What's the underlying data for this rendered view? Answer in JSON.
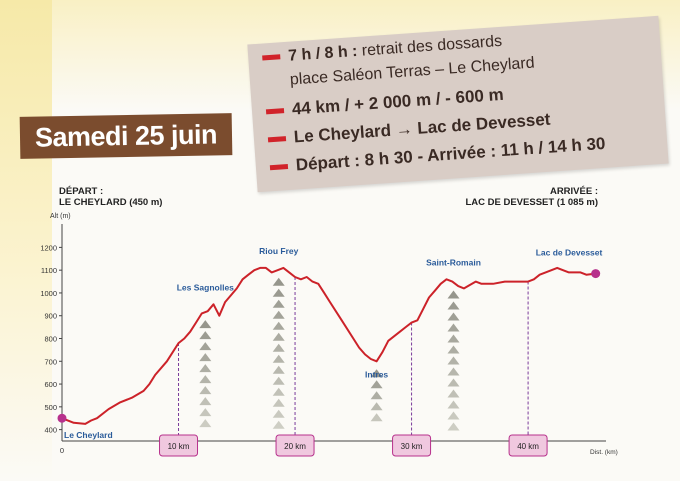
{
  "header": {
    "day_title": "Samedi 25 juin",
    "info": {
      "line1_bold": "7 h / 8 h :",
      "line1_text": " retrait des dossards",
      "line1_cont": "place Saléon Terras – Le Cheylard",
      "line2": "44 km / + 2 000 m / - 600 m",
      "line3_from": "Le Cheylard",
      "line3_arrow": "→",
      "line3_to": "Lac de Devesset",
      "line4": "Départ : 8 h 30 - Arrivée : 11 h / 14 h 30"
    }
  },
  "start": {
    "line1": "DÉPART :",
    "line2": "LE CHEYLARD (450 m)"
  },
  "finish": {
    "line1": "ARRIVÉE :",
    "line2": "LAC DE DEVESSET (1 085 m)"
  },
  "colors": {
    "profile": "#cc2229",
    "place": "#2a5b9a",
    "marker": "#b7318c",
    "km_box": "#f0c8df",
    "km_border": "#b7318c",
    "dash": "#7a3a9a"
  },
  "chart_data": {
    "type": "line",
    "title": "",
    "ylabel": "Alt (m)",
    "xlabel": "Dist. (km)",
    "ylim": [
      350,
      1250
    ],
    "xlim": [
      0,
      46
    ],
    "yticks": [
      400,
      500,
      600,
      700,
      800,
      900,
      1000,
      1100,
      1200
    ],
    "x_origin_label": "0",
    "km_markers": [
      {
        "km": 10,
        "label": "10 km"
      },
      {
        "km": 20,
        "label": "20 km"
      },
      {
        "km": 30,
        "label": "30 km"
      },
      {
        "km": 40,
        "label": "40 km"
      }
    ],
    "places": [
      {
        "name": "Le Cheylard",
        "km": 0,
        "alt": 450,
        "label_pos": "below"
      },
      {
        "name": "Les Sagnolles",
        "km": 12.3,
        "alt": 950,
        "label_pos": "above"
      },
      {
        "name": "Riou Frey",
        "km": 18.6,
        "alt": 1110,
        "label_pos": "above"
      },
      {
        "name": "Intres",
        "km": 27.0,
        "alt": 700,
        "label_pos": "below"
      },
      {
        "name": "Saint-Romain",
        "km": 33.6,
        "alt": 1060,
        "label_pos": "above"
      },
      {
        "name": "Lac de Devesset",
        "km": 44.2,
        "alt": 1085,
        "label_pos": "above"
      }
    ],
    "series": [
      {
        "x": [
          0,
          1,
          2,
          2.5,
          3,
          4,
          5,
          6,
          7,
          7.5,
          8,
          9,
          10,
          10.5,
          11,
          11.5,
          12,
          12.5,
          13,
          13.5,
          14,
          15,
          15.5,
          16,
          16.5,
          17,
          17.5,
          18,
          18.5,
          19,
          19.5,
          20,
          20.5,
          21,
          21.5,
          22,
          22.5,
          23,
          24,
          25,
          25.5,
          26,
          26.5,
          27,
          27.5,
          28,
          29,
          29.5,
          30,
          30.5,
          31,
          31.5,
          32,
          32.5,
          33,
          33.5,
          34,
          34.5,
          35,
          35.5,
          36,
          37,
          38,
          39,
          40,
          40.5,
          41,
          41.5,
          42,
          42.5,
          43,
          43.5,
          44,
          44.5,
          45,
          45.8
        ],
        "y": [
          450,
          430,
          425,
          440,
          450,
          490,
          520,
          540,
          570,
          600,
          640,
          700,
          780,
          800,
          830,
          870,
          910,
          920,
          950,
          900,
          960,
          1020,
          1060,
          1080,
          1100,
          1110,
          1110,
          1090,
          1100,
          1110,
          1090,
          1070,
          1060,
          1070,
          1050,
          1040,
          1000,
          960,
          880,
          800,
          760,
          730,
          710,
          700,
          740,
          790,
          830,
          850,
          870,
          880,
          930,
          980,
          1010,
          1040,
          1060,
          1050,
          1030,
          1020,
          1035,
          1050,
          1040,
          1040,
          1050,
          1050,
          1050,
          1060,
          1080,
          1090,
          1100,
          1110,
          1100,
          1090,
          1090,
          1090,
          1080,
          1085
        ]
      }
    ]
  }
}
